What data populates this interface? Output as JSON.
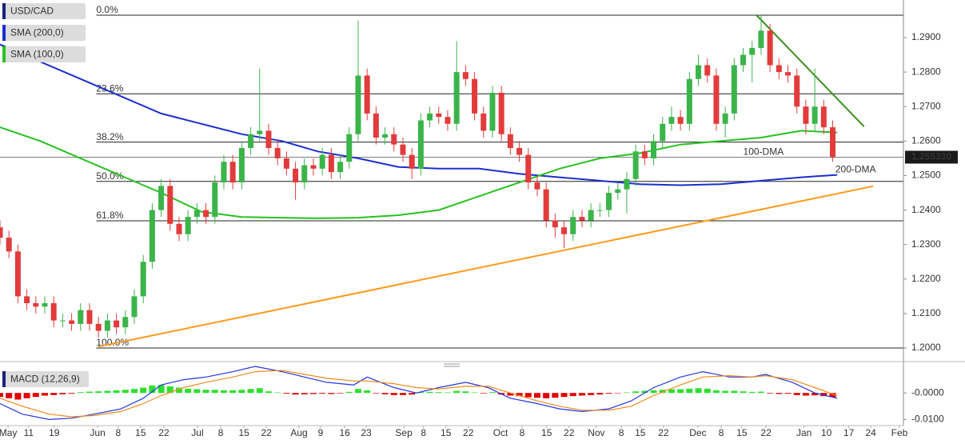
{
  "chart_data": {
    "type": "candlestick",
    "title": "USD/CAD",
    "xlim": [
      0,
      201.8
    ],
    "xticks": [
      {
        "value": 1.8,
        "label": "May"
      },
      {
        "value": 6.4,
        "label": "11"
      },
      {
        "value": 12.1,
        "label": "19"
      },
      {
        "value": 21.8,
        "label": "Jun"
      },
      {
        "value": 26.4,
        "label": "8"
      },
      {
        "value": 31.4,
        "label": "15"
      },
      {
        "value": 36.6,
        "label": "22"
      },
      {
        "value": 44.1,
        "label": "Jul"
      },
      {
        "value": 49.3,
        "label": "8"
      },
      {
        "value": 54.5,
        "label": "15"
      },
      {
        "value": 59.5,
        "label": "22"
      },
      {
        "value": 66.8,
        "label": "Aug"
      },
      {
        "value": 71.6,
        "label": "9"
      },
      {
        "value": 77,
        "label": "16"
      },
      {
        "value": 81.8,
        "label": "23"
      },
      {
        "value": 90.2,
        "label": "Sep"
      },
      {
        "value": 94.6,
        "label": "8"
      },
      {
        "value": 99.6,
        "label": "15"
      },
      {
        "value": 104.6,
        "label": "22"
      },
      {
        "value": 111.8,
        "label": "Oct"
      },
      {
        "value": 116.6,
        "label": "8"
      },
      {
        "value": 122.1,
        "label": "15"
      },
      {
        "value": 127.1,
        "label": "22"
      },
      {
        "value": 133.2,
        "label": "Nov"
      },
      {
        "value": 138.8,
        "label": "8"
      },
      {
        "value": 143,
        "label": "15"
      },
      {
        "value": 148.2,
        "label": "22"
      },
      {
        "value": 155.9,
        "label": "Dec"
      },
      {
        "value": 161.1,
        "label": "8"
      },
      {
        "value": 165.7,
        "label": "15"
      },
      {
        "value": 171.1,
        "label": "22"
      },
      {
        "value": 179.6,
        "label": "Jan"
      },
      {
        "value": 184.6,
        "label": "10"
      },
      {
        "value": 189.6,
        "label": "17"
      },
      {
        "value": 194.5,
        "label": "24"
      },
      {
        "value": 200.9,
        "label": "Feb"
      }
    ],
    "ylim": [
      1.1963,
      1.3009
    ],
    "yticks": [
      {
        "value": 1.29,
        "label": "1.2900"
      },
      {
        "value": 1.28,
        "label": "1.2800"
      },
      {
        "value": 1.27,
        "label": "1.2700"
      },
      {
        "value": 1.26,
        "label": "1.2600"
      },
      {
        "value": 1.25,
        "label": "1.2500"
      },
      {
        "value": 1.24,
        "label": "1.2400"
      },
      {
        "value": 1.23,
        "label": "1.2300"
      },
      {
        "value": 1.22,
        "label": "1.2200"
      },
      {
        "value": 1.21,
        "label": "1.2100"
      },
      {
        "value": 1.2,
        "label": "1.2000"
      }
    ],
    "grid": false,
    "up_color": "#3bb44a",
    "down_color": "#e23b3b",
    "candles": {
      "x": [
        0,
        2,
        4,
        6,
        8,
        10,
        12,
        14,
        16,
        18,
        20,
        22,
        24,
        26,
        28,
        30,
        32,
        34,
        36,
        38,
        40,
        42,
        44,
        46,
        48,
        50,
        52,
        54,
        56,
        58,
        60,
        62,
        64,
        66,
        68,
        70,
        72,
        74,
        76,
        78,
        80,
        82,
        84,
        86,
        88,
        90,
        92,
        94,
        96,
        98,
        100,
        102,
        104,
        106,
        108,
        110,
        112,
        114,
        116,
        118,
        120,
        122,
        124,
        126,
        128,
        130,
        132,
        134,
        136,
        138,
        140,
        142,
        144,
        146,
        148,
        150,
        152,
        154,
        156,
        158,
        160,
        162,
        164,
        166,
        168,
        170,
        172,
        174,
        176,
        178,
        180,
        182,
        184,
        186
      ],
      "open": [
        1.235,
        1.232,
        1.228,
        1.215,
        1.213,
        1.212,
        1.213,
        1.208,
        1.208,
        1.207,
        1.211,
        1.207,
        1.205,
        1.208,
        1.206,
        1.209,
        1.215,
        1.225,
        1.24,
        1.247,
        1.236,
        1.233,
        1.238,
        1.24,
        1.238,
        1.248,
        1.254,
        1.248,
        1.258,
        1.262,
        1.263,
        1.258,
        1.255,
        1.252,
        1.248,
        1.253,
        1.252,
        1.256,
        1.251,
        1.254,
        1.262,
        1.279,
        1.268,
        1.261,
        1.262,
        1.259,
        1.256,
        1.252,
        1.266,
        1.268,
        1.267,
        1.265,
        1.28,
        1.278,
        1.268,
        1.263,
        1.274,
        1.262,
        1.258,
        1.256,
        1.248,
        1.246,
        1.237,
        1.235,
        1.233,
        1.238,
        1.237,
        1.24,
        1.24,
        1.245,
        1.246,
        1.249,
        1.257,
        1.255,
        1.26,
        1.265,
        1.267,
        1.265,
        1.278,
        1.282,
        1.279,
        1.265,
        1.268,
        1.282,
        1.285,
        1.287,
        1.292,
        1.282,
        1.28,
        1.279,
        1.27,
        1.265,
        1.27,
        1.264
      ],
      "high": [
        1.237,
        1.234,
        1.23,
        1.217,
        1.215,
        1.215,
        1.215,
        1.21,
        1.21,
        1.213,
        1.213,
        1.209,
        1.21,
        1.21,
        1.211,
        1.217,
        1.227,
        1.242,
        1.249,
        1.249,
        1.238,
        1.24,
        1.242,
        1.242,
        1.25,
        1.256,
        1.256,
        1.26,
        1.264,
        1.281,
        1.265,
        1.26,
        1.257,
        1.254,
        1.255,
        1.255,
        1.258,
        1.258,
        1.256,
        1.264,
        1.295,
        1.281,
        1.27,
        1.264,
        1.264,
        1.261,
        1.258,
        1.268,
        1.27,
        1.27,
        1.269,
        1.289,
        1.282,
        1.28,
        1.27,
        1.276,
        1.276,
        1.264,
        1.26,
        1.258,
        1.25,
        1.248,
        1.239,
        1.237,
        1.24,
        1.24,
        1.242,
        1.242,
        1.247,
        1.248,
        1.251,
        1.259,
        1.259,
        1.262,
        1.267,
        1.27,
        1.269,
        1.28,
        1.285,
        1.284,
        1.281,
        1.27,
        1.284,
        1.287,
        1.289,
        1.2965,
        1.294,
        1.284,
        1.282,
        1.281,
        1.272,
        1.281,
        1.272,
        1.266
      ],
      "low": [
        1.23,
        1.226,
        1.213,
        1.211,
        1.21,
        1.21,
        1.206,
        1.206,
        1.205,
        1.205,
        1.205,
        1.203,
        1.203,
        1.204,
        1.204,
        1.207,
        1.213,
        1.223,
        1.238,
        1.234,
        1.231,
        1.231,
        1.236,
        1.236,
        1.236,
        1.246,
        1.246,
        1.246,
        1.256,
        1.26,
        1.256,
        1.253,
        1.25,
        1.243,
        1.246,
        1.25,
        1.25,
        1.249,
        1.249,
        1.252,
        1.26,
        1.266,
        1.259,
        1.259,
        1.257,
        1.254,
        1.249,
        1.25,
        1.264,
        1.265,
        1.263,
        1.263,
        1.276,
        1.266,
        1.261,
        1.261,
        1.26,
        1.256,
        1.254,
        1.246,
        1.244,
        1.235,
        1.232,
        1.229,
        1.231,
        1.235,
        1.235,
        1.238,
        1.238,
        1.243,
        1.239,
        1.247,
        1.253,
        1.253,
        1.258,
        1.263,
        1.263,
        1.263,
        1.276,
        1.277,
        1.263,
        1.261,
        1.266,
        1.28,
        1.277,
        1.285,
        1.28,
        1.278,
        1.277,
        1.268,
        1.262,
        1.263,
        1.262,
        1.254
      ],
      "close": [
        1.232,
        1.228,
        1.215,
        1.213,
        1.212,
        1.213,
        1.208,
        1.208,
        1.207,
        1.211,
        1.207,
        1.205,
        1.208,
        1.206,
        1.209,
        1.215,
        1.225,
        1.24,
        1.247,
        1.236,
        1.233,
        1.238,
        1.24,
        1.238,
        1.248,
        1.254,
        1.248,
        1.258,
        1.262,
        1.263,
        1.258,
        1.255,
        1.252,
        1.248,
        1.253,
        1.252,
        1.256,
        1.251,
        1.254,
        1.262,
        1.279,
        1.268,
        1.261,
        1.262,
        1.259,
        1.256,
        1.252,
        1.266,
        1.268,
        1.267,
        1.265,
        1.28,
        1.278,
        1.268,
        1.263,
        1.274,
        1.262,
        1.258,
        1.256,
        1.248,
        1.246,
        1.237,
        1.235,
        1.233,
        1.238,
        1.237,
        1.24,
        1.24,
        1.245,
        1.246,
        1.249,
        1.257,
        1.255,
        1.26,
        1.265,
        1.267,
        1.265,
        1.278,
        1.282,
        1.279,
        1.265,
        1.268,
        1.282,
        1.285,
        1.287,
        1.292,
        1.282,
        1.28,
        1.279,
        1.27,
        1.265,
        1.27,
        1.264,
        1.2553
      ]
    },
    "series": [
      {
        "name": "SMA (200,0)",
        "color": "#1c2fcf",
        "x": [
          0,
          9,
          18,
          27,
          36,
          45,
          54,
          63,
          71,
          80,
          89,
          98,
          107,
          116,
          125,
          134,
          143,
          152,
          161,
          170,
          179,
          187
        ],
        "values": [
          1.288,
          1.283,
          1.278,
          1.273,
          1.268,
          1.265,
          1.262,
          1.26,
          1.257,
          1.255,
          1.2525,
          1.252,
          1.252,
          1.2505,
          1.2495,
          1.2485,
          1.2475,
          1.2472,
          1.2475,
          1.2485,
          1.2495,
          1.2502
        ]
      },
      {
        "name": "SMA (100,0)",
        "color": "#27c21f",
        "x": [
          0,
          9,
          18,
          27,
          36,
          45,
          54,
          63,
          71,
          80,
          89,
          98,
          107,
          116,
          125,
          134,
          143,
          152,
          161,
          170,
          179,
          187
        ],
        "values": [
          1.264,
          1.26,
          1.255,
          1.25,
          1.245,
          1.2395,
          1.238,
          1.2378,
          1.2376,
          1.2378,
          1.2385,
          1.24,
          1.244,
          1.248,
          1.252,
          1.255,
          1.2565,
          1.259,
          1.26,
          1.261,
          1.263,
          1.2625
        ]
      }
    ],
    "last_price": {
      "value": 1.25533,
      "label": "1.255330"
    },
    "fib_levels": [
      {
        "value": 1.2965,
        "label": "0.0%"
      },
      {
        "value": 1.2737,
        "label": "23.6%"
      },
      {
        "value": 1.2597,
        "label": "38.2%"
      },
      {
        "value": 1.2483,
        "label": "50.0%"
      },
      {
        "value": 1.2369,
        "label": "61.8%"
      },
      {
        "value": 1.2,
        "label": "100.0%"
      }
    ],
    "fib_start_x": 21.5,
    "trendlines": [
      {
        "color": "#ff9a1a",
        "x": [
          22,
          195
        ],
        "values": [
          1.2004,
          1.2469
        ]
      },
      {
        "color": "#3f8f1f",
        "x": [
          169,
          193
        ],
        "values": [
          1.2965,
          1.2642
        ]
      }
    ],
    "annotations": [
      {
        "text": "100-DMA",
        "x": 166,
        "y": 1.2567,
        "color": "#27c21f"
      },
      {
        "text": "200-DMA",
        "x": 186.6,
        "y": 1.2516,
        "color": "#6a78e6"
      }
    ],
    "macd": {
      "title": "MACD (12,26,9)",
      "ylim": [
        -0.0123,
        0.0103
      ],
      "yticks": [
        {
          "value": 0,
          "label": "-0.0000"
        },
        {
          "value": -0.01,
          "label": "-0.0100"
        }
      ],
      "histogram": {
        "pos_color": "#2ee02e",
        "neg_color": "#e00000",
        "values": [
          -0.0015,
          -0.002,
          -0.0025,
          -0.002,
          -0.0015,
          -0.001,
          -0.0008,
          -0.0005,
          -0.0003,
          0.0003,
          0.0005,
          0.0006,
          0.0008,
          0.001,
          0.0012,
          0.0015,
          0.002,
          0.0028,
          0.003,
          0.0025,
          0.002,
          0.0016,
          0.0014,
          0.0012,
          0.0012,
          0.001,
          0.001,
          0.0012,
          0.0015,
          0.0018,
          0.0006,
          0.0002,
          -0.0003,
          -0.0006,
          -0.0005,
          -0.0004,
          -0.0003,
          -0.0004,
          -0.0002,
          0.0004,
          0.0015,
          0.001,
          -0.0002,
          -0.0005,
          -0.0008,
          -0.0008,
          -0.0006,
          0.0003,
          0.0004,
          0.0003,
          0.0002,
          0.0008,
          0.0006,
          0.0002,
          -0.0002,
          0.0003,
          -0.0006,
          -0.001,
          -0.0012,
          -0.0016,
          -0.0018,
          -0.002,
          -0.0018,
          -0.0015,
          -0.0012,
          -0.001,
          -0.0008,
          -0.0006,
          -0.0003,
          -0.0001,
          0.0002,
          0.0006,
          0.0008,
          0.001,
          0.0012,
          0.0014,
          0.0014,
          0.0016,
          0.0018,
          0.0016,
          0.001,
          0.0008,
          0.0008,
          0.0006,
          0.0004,
          0.0005,
          -0.0002,
          -0.0004,
          -0.0003,
          -0.0008,
          -0.001,
          -0.0009,
          -0.0012,
          -0.0016
        ]
      },
      "series": [
        {
          "color": "#2436e0",
          "x": [
            0,
            5,
            11,
            16,
            21,
            27,
            32,
            36,
            41,
            46,
            52,
            57,
            63,
            68,
            73,
            79,
            82,
            88,
            93,
            98,
            104,
            109,
            114,
            120,
            125,
            130,
            136,
            141,
            146,
            152,
            157,
            163,
            168,
            171,
            177,
            182,
            187
          ],
          "values": [
            -0.004,
            -0.008,
            -0.01,
            -0.0095,
            -0.008,
            -0.006,
            -0.002,
            0.003,
            0.005,
            0.006,
            0.008,
            0.01,
            0.008,
            0.006,
            0.004,
            0.003,
            0.006,
            0.002,
            0,
            0.002,
            0.004,
            0.002,
            -0.002,
            -0.004,
            -0.006,
            -0.007,
            -0.006,
            -0.003,
            0.002,
            0.006,
            0.008,
            0.006,
            0.006,
            0.007,
            0.004,
            0,
            -0.002
          ]
        },
        {
          "color": "#f08a1c",
          "x": [
            0,
            5,
            11,
            16,
            21,
            27,
            32,
            36,
            41,
            46,
            52,
            57,
            63,
            68,
            73,
            79,
            82,
            88,
            93,
            98,
            104,
            109,
            114,
            120,
            125,
            130,
            136,
            141,
            146,
            152,
            157,
            163,
            168,
            171,
            177,
            182,
            187
          ],
          "values": [
            -0.002,
            -0.005,
            -0.008,
            -0.009,
            -0.0085,
            -0.007,
            -0.004,
            -0.001,
            0.002,
            0.004,
            0.006,
            0.008,
            0.0085,
            0.007,
            0.0055,
            0.0045,
            0.0045,
            0.0035,
            0.002,
            0.0015,
            0.0025,
            0.0025,
            0,
            -0.003,
            -0.005,
            -0.0065,
            -0.0065,
            -0.005,
            -0.001,
            0.003,
            0.006,
            0.0065,
            0.006,
            0.0065,
            0.005,
            0.002,
            -0.001
          ]
        }
      ]
    }
  }
}
